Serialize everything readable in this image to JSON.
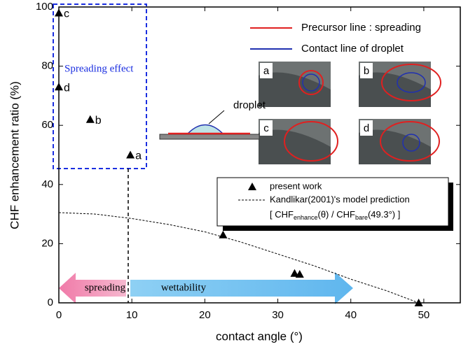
{
  "chart_data": {
    "type": "scatter",
    "xlabel": "contact angle (°)",
    "ylabel": "CHF enhancement ratio (%)",
    "xlim": [
      0,
      55
    ],
    "ylim": [
      0,
      100
    ],
    "xticks": [
      0,
      10,
      20,
      30,
      40,
      50
    ],
    "yticks": [
      0,
      20,
      40,
      60,
      80,
      100
    ],
    "series": [
      {
        "name": "present work",
        "type": "scatter",
        "color": "#000000",
        "x": [
          0,
          0,
          4.3,
          9.8,
          22.5,
          32.3,
          33,
          49.3
        ],
        "values": [
          98,
          73,
          62,
          50,
          23,
          10,
          9.7,
          0
        ],
        "point_labels": [
          "c",
          "d",
          "b",
          "a",
          null,
          null,
          null,
          null
        ]
      },
      {
        "name": "Kandlikar(2001)'s model prediction",
        "type": "line",
        "color": "#000000",
        "dashed": true,
        "x": [
          0,
          5,
          10,
          15,
          20,
          25,
          30,
          35,
          40,
          45,
          49.3
        ],
        "values": [
          30.5,
          30,
          28.5,
          26.5,
          24,
          20.5,
          16.5,
          12.5,
          8,
          4,
          0
        ]
      }
    ],
    "formula": [
      "[ CHF",
      "enhance",
      "(θ) / CHF",
      "bare",
      "(49.3°) ]"
    ],
    "image_legend": [
      {
        "name": "Precursor line : spreading",
        "color": "#e02020"
      },
      {
        "name": "Contact line of droplet",
        "color": "#2030b0"
      }
    ],
    "image_labels": [
      "a",
      "b",
      "c",
      "d"
    ],
    "annotations": {
      "spreading_effect": "Spreading effect",
      "droplet": "droplet",
      "spreading": "spreading",
      "wettability": "wettability"
    }
  }
}
